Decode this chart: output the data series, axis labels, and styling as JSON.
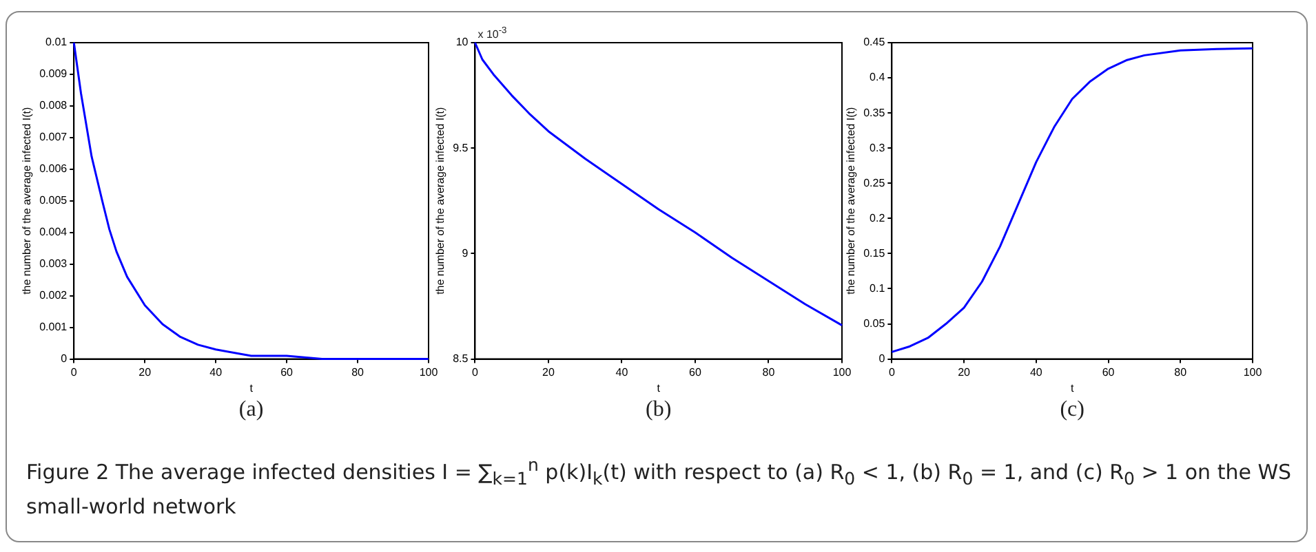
{
  "chart_data": [
    {
      "type": "line",
      "xlabel": "t",
      "ylabel": "the number of the average infected I(t)",
      "annotations": [
        "(a)"
      ],
      "x": [
        0,
        2,
        5,
        8,
        10,
        12,
        15,
        20,
        25,
        30,
        35,
        40,
        50,
        60,
        70,
        80,
        100
      ],
      "series": [
        {
          "color": "#0000ff",
          "values": [
            0.01,
            0.0084,
            0.0064,
            0.005,
            0.0041,
            0.0034,
            0.0026,
            0.0017,
            0.0011,
            0.0007,
            0.00045,
            0.0003,
            0.0001,
            0.0001,
            0,
            0,
            0
          ]
        }
      ],
      "xlim": [
        0,
        100
      ],
      "xticks": [
        0,
        20,
        40,
        60,
        80,
        100
      ],
      "ylim": [
        0,
        0.01
      ],
      "yticks": [
        0,
        0.001,
        0.002,
        0.003,
        0.004,
        0.005,
        0.006,
        0.007,
        0.008,
        0.009,
        0.01
      ],
      "grid": false,
      "legend": false,
      "marker": "none",
      "line_style": "solid"
    },
    {
      "type": "line",
      "xlabel": "t",
      "ylabel": "the number of the average infected I(t)",
      "annotations": [
        "(b)",
        "x 10$^{-3}$"
      ],
      "x": [
        0,
        2,
        5,
        10,
        15,
        20,
        30,
        40,
        50,
        60,
        70,
        80,
        90,
        100
      ],
      "series": [
        {
          "color": "#0000ff",
          "values": [
            10,
            9.92,
            9.85,
            9.75,
            9.66,
            9.58,
            9.45,
            9.33,
            9.21,
            9.1,
            8.98,
            8.87,
            8.76,
            8.66
          ]
        }
      ],
      "xlim": [
        0,
        100
      ],
      "xticks": [
        0,
        20,
        40,
        60,
        80,
        100
      ],
      "ylim": [
        8.5,
        10
      ],
      "yticks": [
        8.5,
        9,
        9.5,
        10
      ],
      "grid": false,
      "legend": false,
      "marker": "none",
      "line_style": "solid"
    },
    {
      "type": "line",
      "xlabel": "t",
      "ylabel": "the number of the average infected I(t)",
      "annotations": [
        "(c)",
        "Figure 2  The average infected densities I = ∑$_{k=1}$$^{n}$ p(k)I$_{k}$(t) with respect to (a) R$_{0}$ < 1, (b) R$_{0}$ = 1, and (c) R$_{0}$ > 1 on the WS small-world network"
      ],
      "x": [
        0,
        5,
        10,
        15,
        20,
        25,
        30,
        35,
        40,
        45,
        50,
        55,
        60,
        65,
        70,
        80,
        90,
        100
      ],
      "series": [
        {
          "color": "#0000ff",
          "values": [
            0.01,
            0.018,
            0.03,
            0.05,
            0.073,
            0.11,
            0.16,
            0.22,
            0.28,
            0.33,
            0.37,
            0.395,
            0.413,
            0.425,
            0.432,
            0.439,
            0.441,
            0.442
          ]
        }
      ],
      "xlim": [
        0,
        100
      ],
      "xticks": [
        0,
        20,
        40,
        60,
        80,
        100
      ],
      "ylim": [
        0,
        0.45
      ],
      "yticks": [
        0,
        0.05,
        0.1,
        0.15,
        0.2,
        0.25,
        0.3,
        0.35,
        0.4,
        0.45
      ],
      "grid": false,
      "legend": false,
      "marker": "none",
      "line_style": "solid"
    }
  ]
}
